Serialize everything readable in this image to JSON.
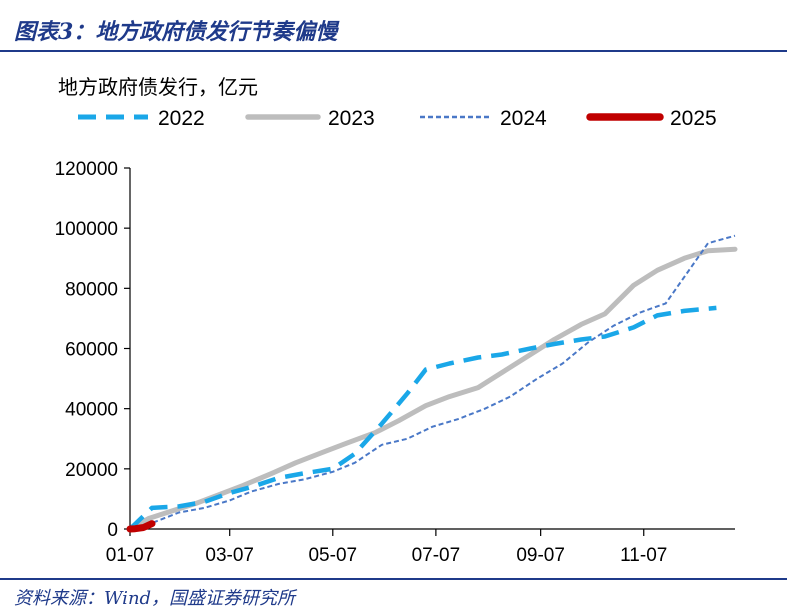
{
  "figure": {
    "title": "图表3：地方政府债发行节奏偏慢",
    "source": "资料来源：Wind，国盛证券研究所"
  },
  "chart_data": {
    "type": "line",
    "title": "",
    "ylabel": "地方政府债发行，亿元",
    "xlabel": "",
    "ylim": [
      0,
      120000
    ],
    "yticks": [
      0,
      20000,
      40000,
      60000,
      80000,
      100000,
      120000
    ],
    "ytick_labels": [
      "0",
      "20000",
      "40000",
      "60000",
      "80000",
      "100000",
      "120000"
    ],
    "xlim": [
      "01-07",
      "12-31"
    ],
    "xticks": [
      "01-07",
      "03-07",
      "05-07",
      "07-07",
      "09-07",
      "11-07"
    ],
    "legend_position": "top",
    "grid": false,
    "series": [
      {
        "name": "2022",
        "color": "#1aa7e8",
        "style": "dash",
        "points": [
          [
            "01-07",
            0
          ],
          [
            "01-20",
            7000
          ],
          [
            "02-05",
            7500
          ],
          [
            "02-20",
            9000
          ],
          [
            "03-07",
            12000
          ],
          [
            "03-20",
            14000
          ],
          [
            "04-05",
            17000
          ],
          [
            "04-20",
            18500
          ],
          [
            "05-07",
            20000
          ],
          [
            "05-20",
            25000
          ],
          [
            "06-05",
            35000
          ],
          [
            "06-20",
            45000
          ],
          [
            "07-01",
            53000
          ],
          [
            "07-15",
            55000
          ],
          [
            "08-01",
            57000
          ],
          [
            "08-15",
            58000
          ],
          [
            "09-01",
            60000
          ],
          [
            "09-15",
            61500
          ],
          [
            "10-01",
            63000
          ],
          [
            "10-15",
            64000
          ],
          [
            "11-01",
            67000
          ],
          [
            "11-15",
            71000
          ],
          [
            "12-01",
            72500
          ],
          [
            "12-20",
            73500
          ]
        ]
      },
      {
        "name": "2023",
        "color": "#bdbdbd",
        "style": "solid",
        "points": [
          [
            "01-07",
            0
          ],
          [
            "01-18",
            3500
          ],
          [
            "02-01",
            6000
          ],
          [
            "02-15",
            8500
          ],
          [
            "03-01",
            11500
          ],
          [
            "03-15",
            14500
          ],
          [
            "04-01",
            18500
          ],
          [
            "04-15",
            22000
          ],
          [
            "05-01",
            25500
          ],
          [
            "05-15",
            28500
          ],
          [
            "06-01",
            32000
          ],
          [
            "06-15",
            36000
          ],
          [
            "07-01",
            41000
          ],
          [
            "07-15",
            44000
          ],
          [
            "08-01",
            47000
          ],
          [
            "08-15",
            52000
          ],
          [
            "09-01",
            58000
          ],
          [
            "09-15",
            63000
          ],
          [
            "10-01",
            68000
          ],
          [
            "10-15",
            71500
          ],
          [
            "11-01",
            81000
          ],
          [
            "11-15",
            86000
          ],
          [
            "12-01",
            90000
          ],
          [
            "12-15",
            92500
          ],
          [
            "12-31",
            93000
          ]
        ]
      },
      {
        "name": "2024",
        "color": "#4a78c7",
        "style": "dot",
        "points": [
          [
            "01-07",
            0
          ],
          [
            "01-20",
            2000
          ],
          [
            "02-05",
            5500
          ],
          [
            "02-20",
            7000
          ],
          [
            "03-07",
            9500
          ],
          [
            "03-20",
            12500
          ],
          [
            "04-05",
            15000
          ],
          [
            "04-20",
            16500
          ],
          [
            "05-07",
            19000
          ],
          [
            "05-20",
            22000
          ],
          [
            "06-05",
            28000
          ],
          [
            "06-20",
            30000
          ],
          [
            "07-05",
            34000
          ],
          [
            "07-20",
            36500
          ],
          [
            "08-05",
            40000
          ],
          [
            "08-20",
            44000
          ],
          [
            "09-05",
            50000
          ],
          [
            "09-20",
            55000
          ],
          [
            "10-05",
            62000
          ],
          [
            "10-20",
            67500
          ],
          [
            "11-05",
            72000
          ],
          [
            "11-20",
            75000
          ],
          [
            "12-05",
            87000
          ],
          [
            "12-15",
            95000
          ],
          [
            "12-31",
            97500
          ]
        ]
      },
      {
        "name": "2025",
        "color": "#c00000",
        "style": "solid-thick",
        "points": [
          [
            "01-07",
            0
          ],
          [
            "01-10",
            100
          ],
          [
            "01-15",
            500
          ],
          [
            "01-20",
            1800
          ]
        ]
      }
    ]
  }
}
